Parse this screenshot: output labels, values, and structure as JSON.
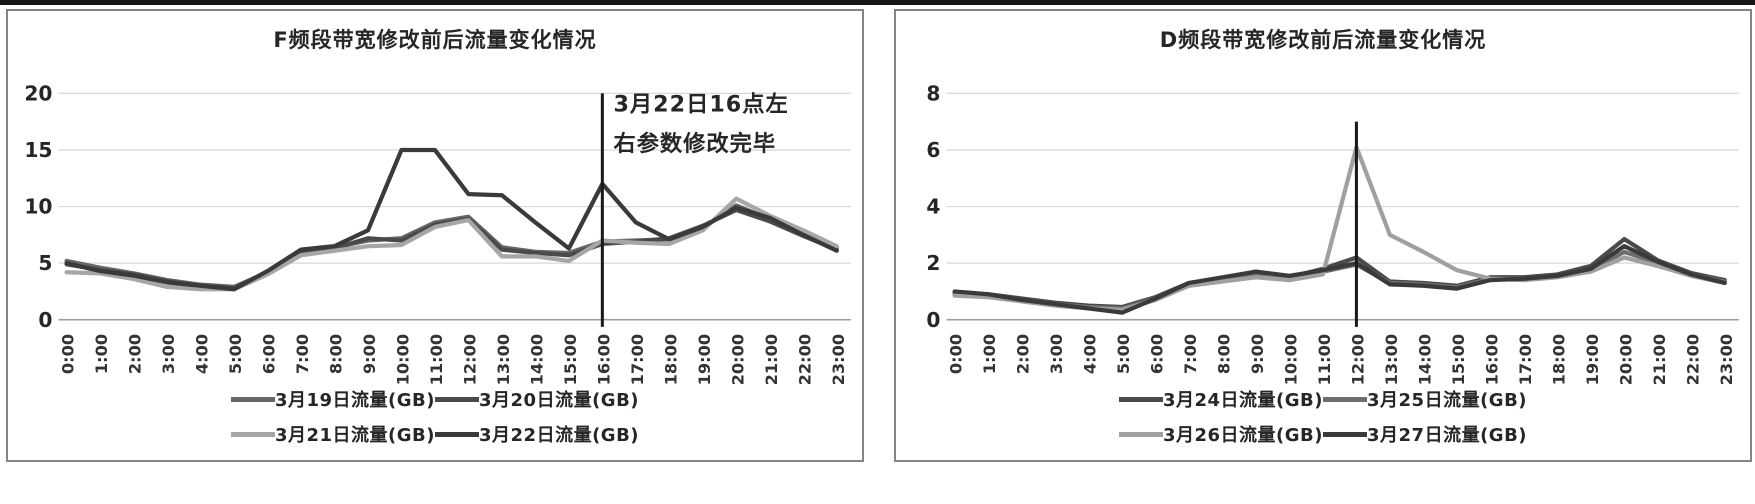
{
  "chart_data": [
    {
      "type": "line",
      "title": "F频段带宽修改前后流量变化情况",
      "xlabel": "",
      "ylabel": "",
      "ylim": [
        0,
        20
      ],
      "yticks": [
        0,
        5,
        10,
        15,
        20
      ],
      "grid": true,
      "legend_position": "bottom",
      "categories": [
        "0:00",
        "1:00",
        "2:00",
        "3:00",
        "4:00",
        "5:00",
        "6:00",
        "7:00",
        "8:00",
        "9:00",
        "10:00",
        "11:00",
        "12:00",
        "13:00",
        "14:00",
        "15:00",
        "16:00",
        "17:00",
        "18:00",
        "19:00",
        "20:00",
        "21:00",
        "22:00",
        "23:00"
      ],
      "series": [
        {
          "name": "3月19日流量(GB)",
          "color": "#666666",
          "values": [
            5.2,
            4.6,
            4.1,
            3.5,
            3.1,
            2.9,
            4.2,
            6.0,
            6.4,
            7.0,
            7.2,
            8.6,
            9.1,
            6.4,
            6.0,
            5.9,
            6.9,
            7.0,
            7.1,
            8.1,
            10.1,
            8.9,
            7.6,
            6.4
          ]
        },
        {
          "name": "3月20日流量(GB)",
          "color": "#4a4a4a",
          "values": [
            4.9,
            4.4,
            4.0,
            3.4,
            3.0,
            2.8,
            4.1,
            5.9,
            6.3,
            7.2,
            7.0,
            8.4,
            8.9,
            6.2,
            5.9,
            5.7,
            6.7,
            6.9,
            7.2,
            8.3,
            9.7,
            8.7,
            7.4,
            6.2
          ]
        },
        {
          "name": "3月21日流量(GB)",
          "color": "#a6a6a6",
          "values": [
            4.2,
            4.1,
            3.6,
            2.9,
            2.7,
            2.7,
            4.0,
            5.7,
            6.1,
            6.5,
            6.6,
            8.2,
            8.8,
            5.6,
            5.6,
            5.2,
            7.0,
            6.8,
            6.7,
            7.9,
            10.7,
            9.2,
            7.9,
            6.5
          ]
        },
        {
          "name": "3月22日流量(GB)",
          "color": "#3a3a3a",
          "values": [
            5.0,
            4.3,
            3.9,
            3.3,
            3.0,
            2.7,
            4.3,
            6.2,
            6.5,
            7.9,
            15.0,
            15.0,
            11.1,
            11.0,
            8.6,
            6.3,
            12.0,
            8.6,
            7.1,
            8.2,
            9.9,
            9.0,
            7.5,
            6.1
          ]
        }
      ],
      "annotation": {
        "vline_hour": 16,
        "vline_top_value": 20,
        "text_lines": [
          "3月22日16点左",
          "右参数修改完毕"
        ]
      }
    },
    {
      "type": "line",
      "title": "D频段带宽修改前后流量变化情况",
      "xlabel": "",
      "ylabel": "",
      "ylim": [
        0,
        8
      ],
      "yticks": [
        0,
        2,
        4,
        6,
        8
      ],
      "grid": true,
      "legend_position": "bottom",
      "categories": [
        "0:00",
        "1:00",
        "2:00",
        "3:00",
        "4:00",
        "5:00",
        "6:00",
        "7:00",
        "8:00",
        "9:00",
        "10:00",
        "11:00",
        "12:00",
        "13:00",
        "14:00",
        "15:00",
        "16:00",
        "17:00",
        "18:00",
        "19:00",
        "20:00",
        "21:00",
        "22:00",
        "23:00"
      ],
      "series": [
        {
          "name": "3月24日流量(GB)",
          "color": "#4a4a4a",
          "values": [
            0.95,
            0.9,
            0.75,
            0.6,
            0.5,
            0.45,
            0.8,
            1.3,
            1.45,
            1.65,
            1.5,
            1.8,
            2.2,
            1.35,
            1.3,
            1.2,
            1.5,
            1.5,
            1.6,
            1.9,
            2.85,
            2.1,
            1.65,
            1.4
          ]
        },
        {
          "name": "3月25日流量(GB)",
          "color": "#6e6e6e",
          "values": [
            0.9,
            0.85,
            0.7,
            0.55,
            0.45,
            0.4,
            0.75,
            1.25,
            1.4,
            1.6,
            1.45,
            1.7,
            1.95,
            1.3,
            1.25,
            1.15,
            1.45,
            1.45,
            1.55,
            1.75,
            2.4,
            2.0,
            1.6,
            1.35
          ]
        },
        {
          "name": "3月26日流量(GB)",
          "color": "#a0a0a0",
          "values": [
            0.85,
            0.8,
            0.65,
            0.5,
            0.4,
            0.35,
            0.7,
            1.2,
            1.35,
            1.5,
            1.4,
            1.6,
            6.1,
            3.0,
            2.4,
            1.75,
            1.45,
            1.4,
            1.5,
            1.7,
            2.2,
            1.9,
            1.55,
            1.3
          ]
        },
        {
          "name": "3月27日流量(GB)",
          "color": "#3a3a3a",
          "values": [
            1.0,
            0.9,
            0.7,
            0.55,
            0.4,
            0.25,
            0.75,
            1.3,
            1.5,
            1.7,
            1.55,
            1.75,
            2.0,
            1.25,
            1.2,
            1.1,
            1.4,
            1.45,
            1.55,
            1.8,
            2.6,
            2.05,
            1.6,
            1.3
          ]
        }
      ],
      "annotation": {
        "vline_hour": 12,
        "vline_top_value": 7,
        "text_lines": []
      }
    }
  ]
}
